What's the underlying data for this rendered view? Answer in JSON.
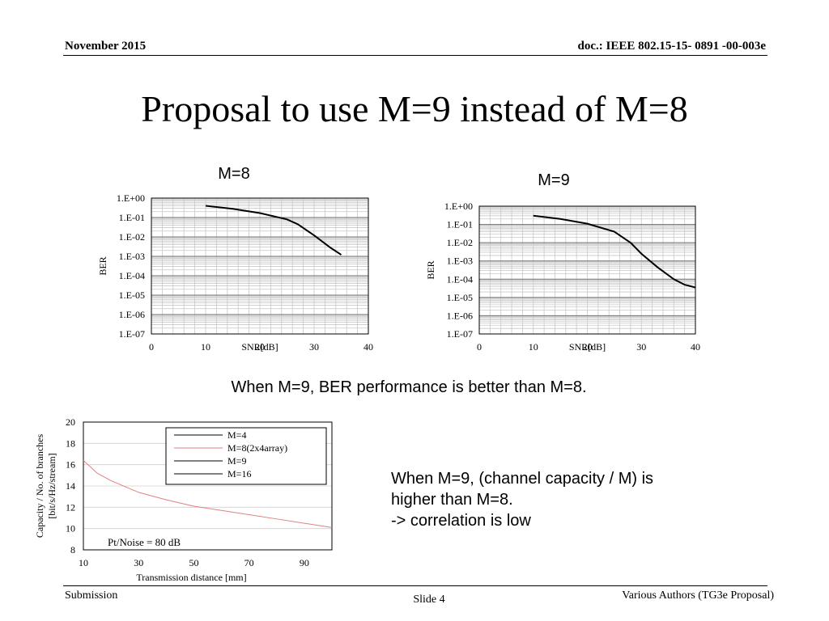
{
  "header": {
    "date": "November 2015",
    "doc": "doc.: IEEE 802.15-15- 0891 -00-003e"
  },
  "title": "Proposal to use M=9 instead of M=8",
  "caption_ber": "When M=9, BER performance is better than M=8.",
  "caption_capacity": [
    "When M=9, (channel capacity / M) is",
    "higher than M=8.",
    "-> correlation is low"
  ],
  "footer": {
    "left": "Submission",
    "center": "Slide 4",
    "right": "Various Authors (TG3e Proposal)"
  },
  "chart_data": [
    {
      "type": "line",
      "title": "M=8",
      "xlabel": "SNR[dB]",
      "ylabel": "BER",
      "xlim": [
        0,
        40
      ],
      "x_ticks": [
        "0",
        "10",
        "20",
        "30",
        "40"
      ],
      "y_scale": "log",
      "ylim": [
        1e-07,
        1
      ],
      "y_ticks": [
        "1.E+00",
        "1.E-01",
        "1.E-02",
        "1.E-03",
        "1.E-04",
        "1.E-05",
        "1.E-06",
        "1.E-07"
      ],
      "grid": true,
      "series": [
        {
          "color": "#000000",
          "x": [
            10,
            15,
            20,
            25,
            27,
            30,
            33,
            35
          ],
          "y": [
            0.4,
            0.28,
            0.17,
            0.08,
            0.045,
            0.012,
            0.0028,
            0.0012
          ]
        }
      ]
    },
    {
      "type": "line",
      "title": "M=9",
      "xlabel": "SNR[dB]",
      "ylabel": "BER",
      "xlim": [
        0,
        40
      ],
      "x_ticks": [
        "0",
        "10",
        "20",
        "30",
        "40"
      ],
      "y_scale": "log",
      "ylim": [
        1e-07,
        1
      ],
      "y_ticks": [
        "1.E+00",
        "1.E-01",
        "1.E-02",
        "1.E-03",
        "1.E-04",
        "1.E-05",
        "1.E-06",
        "1.E-07"
      ],
      "grid": true,
      "series": [
        {
          "color": "#000000",
          "x": [
            10,
            15,
            20,
            25,
            28,
            30,
            33,
            36,
            38,
            40
          ],
          "y": [
            0.3,
            0.2,
            0.11,
            0.04,
            0.01,
            0.0025,
            0.00045,
            0.0001,
            5e-05,
            3.5e-05
          ]
        }
      ]
    },
    {
      "type": "line",
      "xlabel": "Transmission distance [mm]",
      "ylabel": [
        "Capacity / No. of branches",
        "[bit/s/Hz/stream]"
      ],
      "xlim": [
        10,
        100
      ],
      "x_ticks": [
        10,
        30,
        50,
        70,
        90
      ],
      "ylim": [
        8,
        20
      ],
      "y_ticks": [
        8,
        10,
        12,
        14,
        16,
        18,
        20
      ],
      "legend": "top-right",
      "annotation": "Pt/Noise =  80 dB",
      "series": [
        {
          "name": "M=4",
          "color": "#000000",
          "x": [],
          "y": []
        },
        {
          "name": "M=8(2x4array)",
          "color": "#e08080",
          "x": [
            10,
            15,
            20,
            30,
            40,
            50,
            60,
            70,
            80,
            90,
            100
          ],
          "y": [
            16.4,
            15.2,
            14.5,
            13.4,
            12.7,
            12.1,
            11.7,
            11.3,
            10.9,
            10.5,
            10.1
          ]
        },
        {
          "name": "M=9",
          "color": "#000000",
          "x": [],
          "y": []
        },
        {
          "name": "M=16",
          "color": "#000000",
          "x": [],
          "y": []
        }
      ]
    }
  ]
}
